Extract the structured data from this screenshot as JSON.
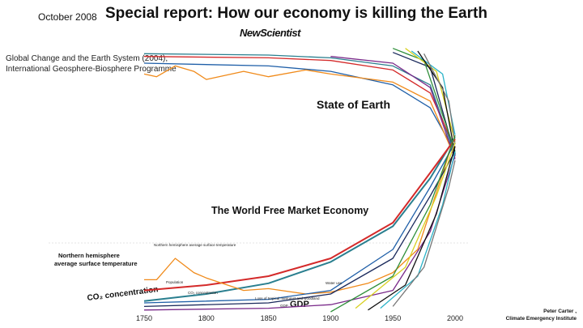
{
  "header": {
    "date": "October 2008",
    "title": "Special report: How our economy is killing the Earth",
    "brand": "NewScientist"
  },
  "source": {
    "line1": "Global Change and the Earth System (2004),",
    "line2": "International Geosphere-Biosphere Programme"
  },
  "labels": {
    "state_of_earth": "State of Earth",
    "market_economy": "The World Free Market Economy",
    "nh_temperature_line1": "Northern hemisphere",
    "nh_temperature_line2": "average surface temperature",
    "co2": "CO₂ concentration",
    "gdp": "GDP",
    "nh_small": "Northern hemisphere average surface temperature",
    "population_small": "Population",
    "co2_small": "CO₂ concentration",
    "water_use_small": "Water use",
    "forest_small": "Loss of tropical rainforest and woodland",
    "gdp_small": "GDP"
  },
  "credit": {
    "line1": "Peter Carter ,",
    "line2": "Climate Emergency Institute"
  },
  "colors": {
    "teal": "#2a7f8f",
    "red": "#d42a2a",
    "orange": "#f08a1a",
    "blue": "#1f5fa8",
    "navy": "#1b2a5c",
    "green": "#2f8f3a",
    "yellow": "#d8d020",
    "purple": "#7a2a8a",
    "black": "#111111",
    "cyan": "#2ab3c8",
    "gray": "#777777"
  },
  "chart_data": {
    "type": "line",
    "xlabel": "",
    "ylabel": "",
    "xlim": [
      1750,
      2000
    ],
    "x_ticks": [
      1750,
      1800,
      1850,
      1900,
      1950,
      2000
    ],
    "groups": [
      {
        "name": "State of Earth",
        "series": [
          {
            "color": "teal",
            "points": [
              [
                1750,
                0.95
              ],
              [
                1850,
                0.94
              ],
              [
                1900,
                0.92
              ],
              [
                1950,
                0.86
              ],
              [
                1980,
                0.72
              ],
              [
                2000,
                0.2
              ]
            ]
          },
          {
            "color": "red",
            "points": [
              [
                1750,
                0.93
              ],
              [
                1850,
                0.92
              ],
              [
                1900,
                0.9
              ],
              [
                1950,
                0.83
              ],
              [
                1980,
                0.66
              ],
              [
                2000,
                0.25
              ]
            ]
          },
          {
            "color": "blue",
            "points": [
              [
                1750,
                0.88
              ],
              [
                1850,
                0.86
              ],
              [
                1900,
                0.82
              ],
              [
                1950,
                0.72
              ],
              [
                1980,
                0.55
              ],
              [
                2000,
                0.22
              ]
            ]
          },
          {
            "color": "orange",
            "points": [
              [
                1750,
                0.8
              ],
              [
                1760,
                0.78
              ],
              [
                1775,
                0.86
              ],
              [
                1790,
                0.82
              ],
              [
                1800,
                0.76
              ],
              [
                1830,
                0.82
              ],
              [
                1850,
                0.78
              ],
              [
                1880,
                0.83
              ],
              [
                1900,
                0.8
              ],
              [
                1950,
                0.74
              ],
              [
                1980,
                0.6
              ],
              [
                2000,
                0.18
              ]
            ]
          },
          {
            "color": "purple",
            "points": [
              [
                1900,
                0.93
              ],
              [
                1950,
                0.88
              ],
              [
                1980,
                0.7
              ],
              [
                2000,
                0.17
              ]
            ]
          },
          {
            "color": "navy",
            "points": [
              [
                1950,
                0.96
              ],
              [
                1980,
                0.85
              ],
              [
                2000,
                0.2
              ]
            ]
          },
          {
            "color": "green",
            "points": [
              [
                1950,
                0.99
              ],
              [
                1975,
                0.9
              ],
              [
                2000,
                0.23
              ]
            ]
          },
          {
            "color": "yellow",
            "points": [
              [
                1960,
                0.99
              ],
              [
                1985,
                0.82
              ],
              [
                2000,
                0.3
              ]
            ]
          },
          {
            "color": "cyan",
            "points": [
              [
                1965,
                0.97
              ],
              [
                1990,
                0.8
              ],
              [
                2000,
                0.35
              ]
            ]
          },
          {
            "color": "black",
            "points": [
              [
                1970,
                0.97
              ],
              [
                1990,
                0.7
              ],
              [
                2000,
                0.21
              ]
            ]
          },
          {
            "color": "gray",
            "points": [
              [
                1975,
                0.95
              ],
              [
                1995,
                0.6
              ],
              [
                2000,
                0.28
              ]
            ]
          }
        ]
      },
      {
        "name": "The World Free Market Economy",
        "series": [
          {
            "color": "teal",
            "label": "CO₂ concentration",
            "points": [
              [
                1750,
                0.06
              ],
              [
                1800,
                0.1
              ],
              [
                1850,
                0.16
              ],
              [
                1900,
                0.28
              ],
              [
                1950,
                0.48
              ],
              [
                1980,
                0.75
              ],
              [
                2000,
                0.98
              ]
            ]
          },
          {
            "color": "red",
            "label": "Population",
            "points": [
              [
                1750,
                0.12
              ],
              [
                1800,
                0.15
              ],
              [
                1850,
                0.2
              ],
              [
                1900,
                0.3
              ],
              [
                1950,
                0.5
              ],
              [
                1980,
                0.78
              ],
              [
                2000,
                0.97
              ]
            ]
          },
          {
            "color": "orange",
            "label": "Northern hemisphere average surface temperature",
            "points": [
              [
                1750,
                0.18
              ],
              [
                1760,
                0.18
              ],
              [
                1775,
                0.3
              ],
              [
                1790,
                0.22
              ],
              [
                1800,
                0.19
              ],
              [
                1830,
                0.12
              ],
              [
                1850,
                0.13
              ],
              [
                1880,
                0.1
              ],
              [
                1900,
                0.11
              ],
              [
                1930,
                0.16
              ],
              [
                1950,
                0.22
              ],
              [
                1970,
                0.35
              ],
              [
                2000,
                0.99
              ]
            ]
          },
          {
            "color": "blue",
            "label": "Water use",
            "points": [
              [
                1750,
                0.05
              ],
              [
                1850,
                0.07
              ],
              [
                1900,
                0.12
              ],
              [
                1950,
                0.35
              ],
              [
                1980,
                0.7
              ],
              [
                2000,
                0.95
              ]
            ]
          },
          {
            "color": "navy",
            "label": "Loss of tropical rainforest and woodland",
            "points": [
              [
                1750,
                0.03
              ],
              [
                1850,
                0.05
              ],
              [
                1900,
                0.1
              ],
              [
                1950,
                0.3
              ],
              [
                1980,
                0.65
              ],
              [
                2000,
                0.9
              ]
            ]
          },
          {
            "color": "purple",
            "label": "GDP",
            "points": [
              [
                1750,
                0.01
              ],
              [
                1850,
                0.02
              ],
              [
                1900,
                0.04
              ],
              [
                1950,
                0.12
              ],
              [
                1980,
                0.45
              ],
              [
                2000,
                0.88
              ]
            ]
          },
          {
            "color": "green",
            "points": [
              [
                1900,
                0.0
              ],
              [
                1950,
                0.2
              ],
              [
                1980,
                0.6
              ],
              [
                2000,
                0.99
              ]
            ]
          },
          {
            "color": "yellow",
            "points": [
              [
                1920,
                0.02
              ],
              [
                1960,
                0.25
              ],
              [
                1985,
                0.65
              ],
              [
                2000,
                0.95
              ]
            ]
          },
          {
            "color": "black",
            "points": [
              [
                1930,
                0.01
              ],
              [
                1960,
                0.15
              ],
              [
                1985,
                0.55
              ],
              [
                2000,
                0.93
              ]
            ]
          },
          {
            "color": "cyan",
            "points": [
              [
                1940,
                0.02
              ],
              [
                1970,
                0.2
              ],
              [
                1990,
                0.6
              ],
              [
                2000,
                0.9
              ]
            ]
          },
          {
            "color": "gray",
            "points": [
              [
                1950,
                0.03
              ],
              [
                1975,
                0.25
              ],
              [
                1995,
                0.7
              ],
              [
                2000,
                0.85
              ]
            ]
          }
        ]
      }
    ]
  }
}
